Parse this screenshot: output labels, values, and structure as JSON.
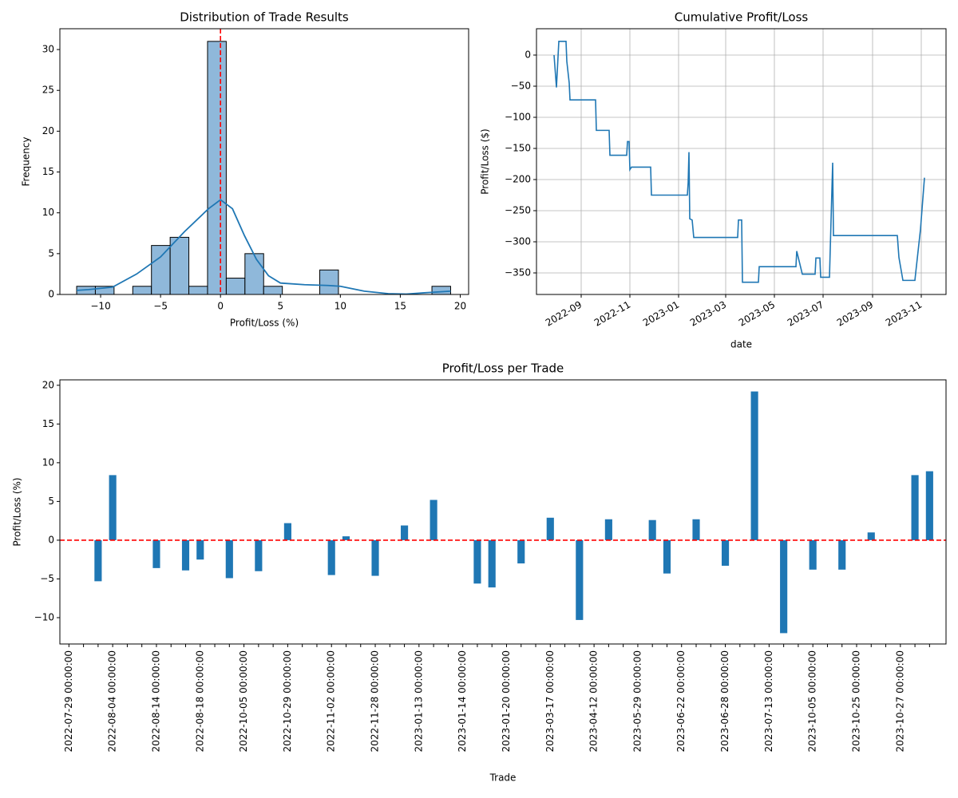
{
  "chart_data": [
    {
      "type": "histogram",
      "title": "Distribution of Trade Results",
      "xlabel": "Profit/Loss (%)",
      "ylabel": "Frequency",
      "bins": [
        -12,
        -10.44,
        -8.88,
        -7.32,
        -5.76,
        -4.2,
        -2.64,
        -1.08,
        0.48,
        2.04,
        3.6,
        5.16,
        6.72,
        8.28,
        9.84,
        11.4,
        12.96,
        14.52,
        16.08,
        17.64,
        19.2
      ],
      "counts": [
        1,
        1,
        0,
        1,
        6,
        7,
        1,
        31,
        2,
        5,
        1,
        0,
        0,
        3,
        0,
        0,
        0,
        0,
        0,
        1
      ],
      "color": "#8fb8da",
      "edgecolor": "#000000",
      "kde": {
        "x": [
          -12,
          -11,
          -9,
          -7,
          -5,
          -3,
          -1,
          0,
          1,
          2,
          3,
          4,
          5,
          7,
          9,
          10,
          12,
          14,
          15.5,
          17,
          19.2
        ],
        "y": [
          0.5,
          0.6,
          0.9,
          2.5,
          4.6,
          7.7,
          10.5,
          11.6,
          10.5,
          7.2,
          4.3,
          2.3,
          1.4,
          1.2,
          1.1,
          1.0,
          0.4,
          0.1,
          0.05,
          0.2,
          0.4
        ],
        "color": "#1f77b4"
      },
      "vline": 0,
      "vline_color": "#ff0000",
      "xlim": [
        -13.4,
        20.7
      ],
      "xticks": [
        {
          "value": -10,
          "label": "−10"
        },
        {
          "value": -5,
          "label": "−5"
        },
        0,
        5,
        10,
        15,
        20
      ],
      "ylim": [
        0,
        32.55
      ],
      "yticks": [
        0,
        5,
        10,
        15,
        20,
        25,
        30
      ],
      "grid": false
    },
    {
      "type": "line",
      "title": "Cumulative Profit/Loss",
      "xlabel": "date",
      "ylabel": "Profit/Loss ($)",
      "color": "#1f77b4",
      "x": [
        "2022-07-29",
        "2022-08-01",
        "2022-08-04",
        "2022-08-13",
        "2022-08-14",
        "2022-08-17",
        "2022-08-18",
        "2022-09-19",
        "2022-09-20",
        "2022-10-06",
        "2022-10-07",
        "2022-10-28",
        "2022-10-29",
        "2022-10-31",
        "2022-11-01",
        "2022-11-03",
        "2022-11-27",
        "2022-11-28",
        "2023-01-12",
        "2023-01-13",
        "2023-01-14",
        "2023-01-15",
        "2023-01-18",
        "2023-01-20",
        "2023-03-16",
        "2023-03-17",
        "2023-03-21",
        "2023-03-22",
        "2023-04-11",
        "2023-04-12",
        "2023-05-28",
        "2023-05-29",
        "2023-06-05",
        "2023-06-21",
        "2023-06-22",
        "2023-06-27",
        "2023-06-28",
        "2023-07-09",
        "2023-07-13",
        "2023-07-14",
        "2023-10-02",
        "2023-10-04",
        "2023-10-09",
        "2023-10-24",
        "2023-10-25",
        "2023-10-31",
        "2023-11-05"
      ],
      "values": [
        0,
        -52,
        22,
        22,
        -10,
        -45,
        -72,
        -72,
        -121,
        -121,
        -161,
        -161,
        -139,
        -139,
        -184,
        -180,
        -180,
        -225,
        -225,
        -205,
        -156,
        -263,
        -265,
        -293,
        -293,
        -265,
        -265,
        -365,
        -365,
        -340,
        -340,
        -315,
        -352,
        -352,
        -326,
        -326,
        -357,
        -357,
        -173,
        -290,
        -290,
        -325,
        -362,
        -362,
        -350,
        -280,
        -197
      ],
      "xlim": [
        "2022-07-07",
        "2023-12-02"
      ],
      "xticks": [
        "2022-09",
        "2022-11",
        "2023-01",
        "2023-03",
        "2023-05",
        "2023-07",
        "2023-09",
        "2023-11"
      ],
      "xtick_rotation": 30,
      "ylim": [
        -384.6,
        42.3
      ],
      "yticks": [
        {
          "value": -350,
          "label": "−350"
        },
        {
          "value": -300,
          "label": "−300"
        },
        {
          "value": -250,
          "label": "−250"
        },
        {
          "value": -200,
          "label": "−200"
        },
        {
          "value": -150,
          "label": "−150"
        },
        {
          "value": -100,
          "label": "−100"
        },
        {
          "value": -50,
          "label": "−50"
        },
        0
      ],
      "grid": true
    },
    {
      "type": "bar",
      "title": "Profit/Loss per Trade",
      "xlabel": "Trade",
      "ylabel": "Profit/Loss (%)",
      "color": "#1f77b4",
      "categories": [
        "2022-07-29 00:00:00",
        null,
        null,
        "2022-08-04 00:00:00",
        null,
        null,
        "2022-08-14 00:00:00",
        null,
        null,
        "2022-08-18 00:00:00",
        null,
        null,
        "2022-10-05 00:00:00",
        null,
        null,
        "2022-10-29 00:00:00",
        null,
        null,
        "2022-11-02 00:00:00",
        null,
        null,
        "2022-11-28 00:00:00",
        null,
        null,
        "2023-01-13 00:00:00",
        null,
        null,
        "2023-01-14 00:00:00",
        null,
        null,
        "2023-01-20 00:00:00",
        null,
        null,
        "2023-03-17 00:00:00",
        null,
        null,
        "2023-04-12 00:00:00",
        null,
        null,
        "2023-05-29 00:00:00",
        null,
        null,
        "2023-06-22 00:00:00",
        null,
        null,
        "2023-06-28 00:00:00",
        null,
        null,
        "2023-07-13 00:00:00",
        null,
        null,
        "2023-10-05 00:00:00",
        null,
        null,
        "2023-10-25 00:00:00",
        null,
        null,
        "2023-10-27 00:00:00",
        null,
        null
      ],
      "values": [
        0,
        0,
        -5.3,
        8.4,
        0,
        0,
        -3.6,
        0,
        -3.9,
        -2.5,
        0,
        -4.9,
        0,
        -4.0,
        0,
        2.2,
        0,
        0,
        -4.5,
        0.5,
        0,
        -4.6,
        0,
        1.9,
        0,
        5.2,
        0,
        0,
        -5.6,
        -6.1,
        0,
        -3.0,
        0,
        2.9,
        0,
        -10.3,
        0,
        2.7,
        0,
        0,
        2.6,
        -4.3,
        0,
        2.7,
        0,
        -3.3,
        0,
        19.2,
        0,
        -12.0,
        0,
        -3.8,
        0,
        -3.8,
        0,
        1.0,
        0,
        0,
        8.4,
        8.9
      ],
      "hline": 0,
      "hline_color": "#ff0000",
      "xtick_rotation": 90,
      "ylim": [
        -13.4,
        20.7
      ],
      "yticks": [
        {
          "value": -10,
          "label": "−10"
        },
        {
          "value": -5,
          "label": "−5"
        },
        0,
        5,
        10,
        15,
        20
      ],
      "grid": false
    }
  ]
}
